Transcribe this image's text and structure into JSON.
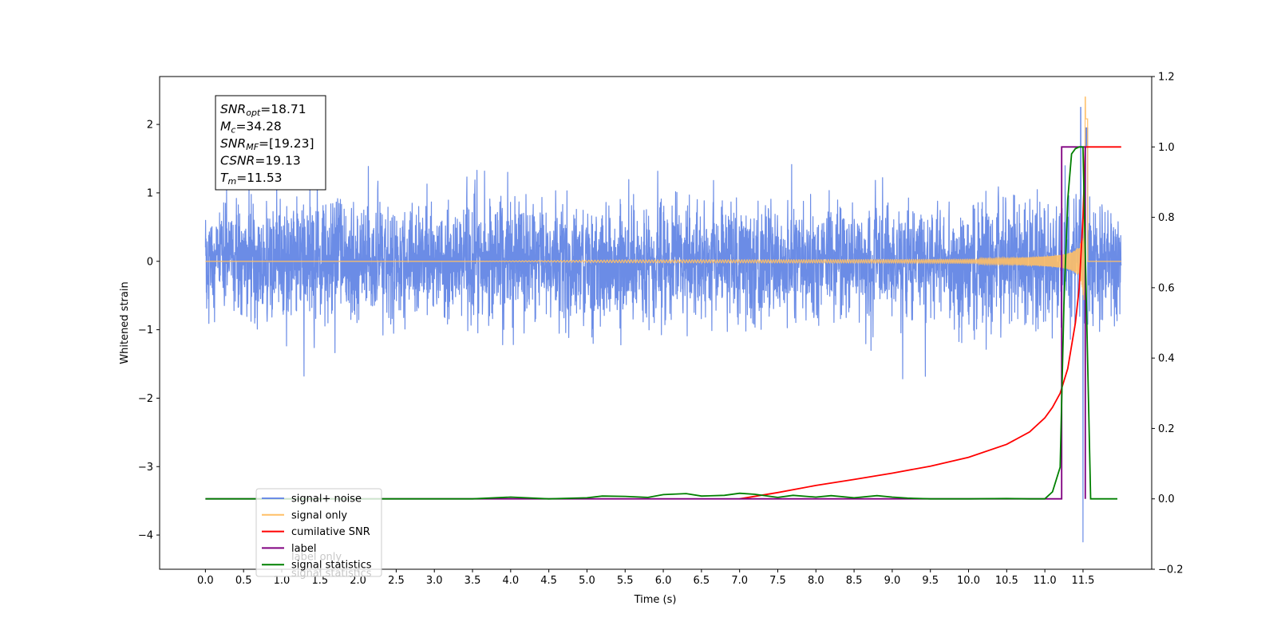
{
  "chart_data": {
    "type": "line",
    "title": "",
    "xlabel": "Time (s)",
    "ylabel": "Whitened strain",
    "y2label": "",
    "xlim": [
      -0.6,
      12.4
    ],
    "ylim": [
      -4.5,
      2.7
    ],
    "y2lim": [
      -0.2,
      1.2
    ],
    "xticks": [
      0.0,
      0.5,
      1.0,
      1.5,
      2.0,
      2.5,
      3.0,
      3.5,
      4.0,
      4.5,
      5.0,
      5.5,
      6.0,
      6.5,
      7.0,
      7.5,
      8.0,
      8.5,
      9.0,
      9.5,
      10.0,
      10.5,
      11.0,
      11.5
    ],
    "xtick_labels": [
      "0.0",
      "0.5",
      "1.0",
      "1.5",
      "2.0",
      "2.5",
      "3.0",
      "3.5",
      "4.0",
      "4.5",
      "5.0",
      "5.5",
      "6.0",
      "6.5",
      "7.0",
      "7.5",
      "8.0",
      "8.5",
      "9.0",
      "9.5",
      "10.0",
      "10.5",
      "11.0",
      "11.5"
    ],
    "yticks": [
      -4,
      -3,
      -2,
      -1,
      0,
      1,
      2
    ],
    "ytick_labels": [
      "−4",
      "−3",
      "−2",
      "−1",
      "0",
      "1",
      "2"
    ],
    "y2ticks": [
      -0.2,
      0.0,
      0.2,
      0.4,
      0.6,
      0.8,
      1.0,
      1.2
    ],
    "y2tick_labels": [
      "−0.2",
      "0.0",
      "0.2",
      "0.4",
      "0.6",
      "0.8",
      "1.0",
      "1.2"
    ],
    "grid": false,
    "legend_position": "lower-left",
    "series": [
      {
        "name": "signal+ noise",
        "axis": "left",
        "color": "#6b8ce6",
        "description_values": {
          "t_start": 0.0,
          "t_end": 12.0,
          "typical_amplitude": 1.2,
          "peak_max": 2.25,
          "peak_min": -4.1
        }
      },
      {
        "name": "signal only",
        "axis": "left",
        "color": "#ffbf66",
        "description_values": {
          "t_start": 0.0,
          "t_end": 12.0,
          "merger_time": 11.53,
          "peak_amplitude": 2.4
        }
      },
      {
        "name": "cumilative SNR",
        "axis": "right",
        "color": "#ff0000",
        "x": [
          7.0,
          7.5,
          8.0,
          8.5,
          9.0,
          9.5,
          10.0,
          10.5,
          10.8,
          11.0,
          11.1,
          11.2,
          11.3,
          11.4,
          11.45,
          11.5,
          11.53,
          12.0
        ],
        "y": [
          0.0,
          0.018,
          0.038,
          0.055,
          0.073,
          0.093,
          0.118,
          0.155,
          0.19,
          0.23,
          0.26,
          0.3,
          0.37,
          0.5,
          0.6,
          0.8,
          1.0,
          1.0
        ]
      },
      {
        "name": "label",
        "axis": "right",
        "color": "#800080",
        "x": [
          0.0,
          11.22,
          11.22,
          11.53,
          11.53
        ],
        "y": [
          0.0,
          0.0,
          1.0,
          1.0,
          0.0
        ]
      },
      {
        "name": "signal statistics",
        "axis": "right",
        "color": "#008000",
        "x": [
          0.0,
          3.5,
          4.0,
          4.5,
          5.0,
          5.2,
          5.5,
          5.8,
          6.0,
          6.3,
          6.5,
          6.8,
          7.0,
          7.2,
          7.5,
          7.7,
          8.0,
          8.2,
          8.5,
          8.8,
          9.0,
          9.2,
          9.5,
          10.0,
          10.5,
          10.8,
          11.0,
          11.1,
          11.2,
          11.25,
          11.3,
          11.35,
          11.4,
          11.45,
          11.5,
          11.55,
          11.6,
          11.95
        ],
        "y": [
          0.0,
          0.0,
          0.005,
          0.0,
          0.003,
          0.008,
          0.007,
          0.004,
          0.012,
          0.015,
          0.008,
          0.01,
          0.016,
          0.013,
          0.004,
          0.01,
          0.005,
          0.009,
          0.003,
          0.009,
          0.005,
          0.002,
          0.0,
          0.0,
          0.001,
          0.0,
          0.0,
          0.02,
          0.09,
          0.55,
          0.85,
          0.98,
          0.995,
          1.0,
          1.0,
          0.5,
          0.0,
          0.0
        ]
      }
    ],
    "info_box": {
      "lines": [
        {
          "main": "SNR",
          "sub": "opt",
          "rest": "=18.71"
        },
        {
          "main": "M",
          "sub": "c",
          "rest": "=34.28"
        },
        {
          "main": "SNR",
          "sub": "MF",
          "rest": "=[19.23]"
        },
        {
          "main": "CSNR",
          "sub": "",
          "rest": "=19.13"
        },
        {
          "main": "T",
          "sub": "m",
          "rest": "=11.53"
        }
      ]
    },
    "legend_entries": [
      {
        "name": "signal+ noise",
        "color": "#6b8ce6"
      },
      {
        "name": "signal only",
        "color": "#ffbf66"
      },
      {
        "name": "cumilative SNR",
        "color": "#ff0000"
      },
      {
        "name": "label",
        "color": "#800080"
      },
      {
        "name": "signal statistics",
        "color": "#008000"
      }
    ],
    "legend_ghost_text": [
      {
        "text": "label only",
        "after_index": 3
      },
      {
        "text": "signal statistics",
        "after_index": 4
      }
    ]
  }
}
